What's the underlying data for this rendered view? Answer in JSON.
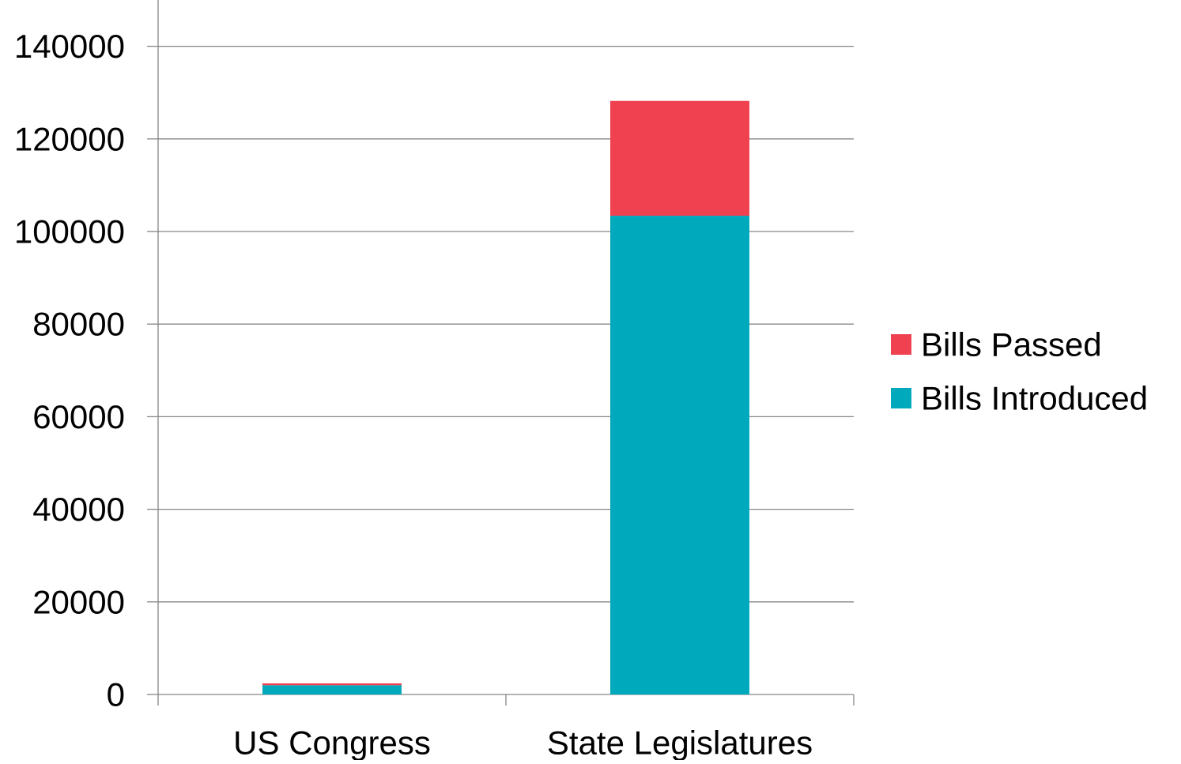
{
  "chart_data": {
    "type": "bar",
    "stacked": true,
    "categories": [
      "US Congress",
      "State Legislatures"
    ],
    "series": [
      {
        "name": "Bills Introduced",
        "values": [
          2000,
          103400
        ],
        "color": "#00A9BC"
      },
      {
        "name": "Bills Passed",
        "values": [
          400,
          24800
        ],
        "color": "#EF4150"
      }
    ],
    "y_ticks": [
      0,
      20000,
      40000,
      60000,
      80000,
      100000,
      120000,
      140000
    ],
    "ylim": [
      0,
      150000
    ],
    "grid": true,
    "legend": {
      "placement": "right",
      "items": [
        "Bills Passed",
        "Bills Introduced"
      ]
    }
  },
  "colors": {
    "grid": "#868686",
    "axis": "#868686",
    "text": "#000000"
  }
}
